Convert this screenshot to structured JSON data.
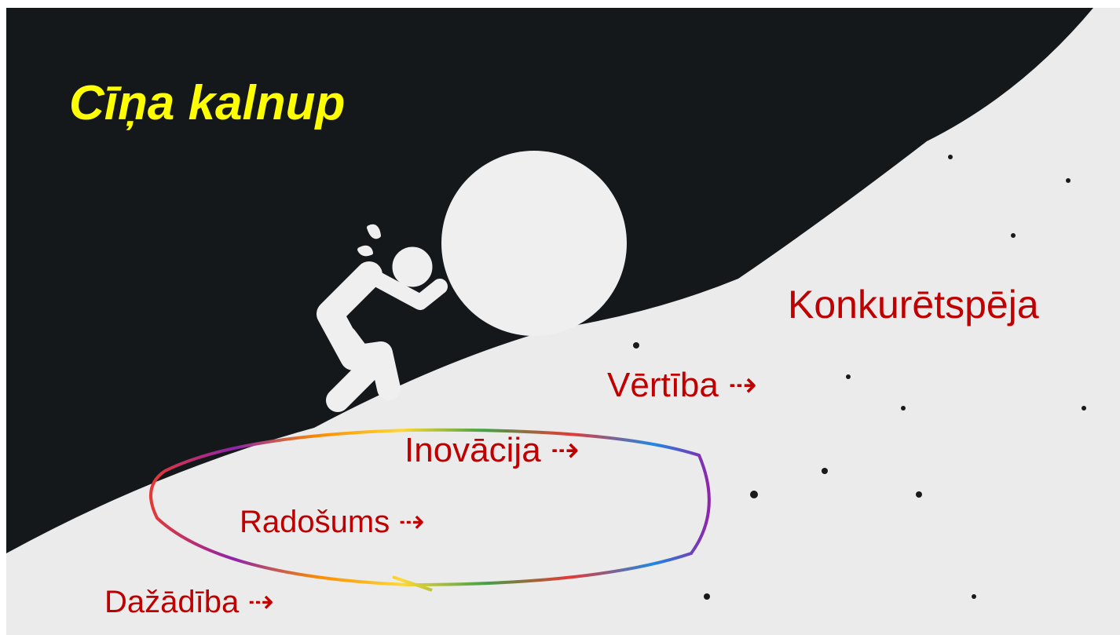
{
  "title": "Cīņa kalnup",
  "steps": [
    "Dažādība ⇢",
    "Radošums ⇢",
    "Inovācija ⇢",
    "Vērtība ⇢",
    "Konkurētspēja"
  ]
}
